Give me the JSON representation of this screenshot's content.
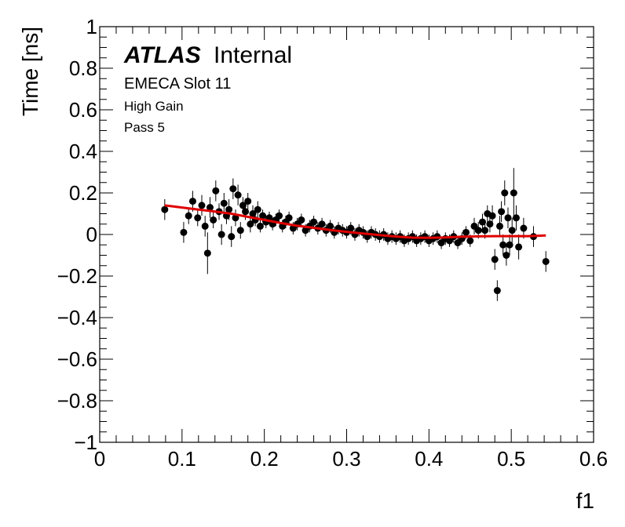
{
  "chart_data": {
    "type": "scatter",
    "xlabel": "f1",
    "ylabel": "Time [ns]",
    "xlim": [
      0,
      0.6
    ],
    "ylim": [
      -1,
      1
    ],
    "x_ticks": [
      "0",
      "0.1",
      "0.2",
      "0.3",
      "0.4",
      "0.5",
      "0.6"
    ],
    "y_ticks": [
      "−1",
      "−0.8",
      "−0.6",
      "−0.4",
      "−0.2",
      "0",
      "0.2",
      "0.4",
      "0.6",
      "0.8",
      "1"
    ],
    "annotations": {
      "brand": "ATLAS",
      "status": "Internal",
      "line1": "EMECA Slot 11",
      "line2": "High Gain",
      "line3": "Pass 5"
    },
    "colors": {
      "points": "#000000",
      "fit": "#e00000"
    },
    "points": [
      {
        "x": 0.079,
        "y": 0.12,
        "e": 0.05
      },
      {
        "x": 0.102,
        "y": 0.01,
        "e": 0.05
      },
      {
        "x": 0.108,
        "y": 0.09,
        "e": 0.04
      },
      {
        "x": 0.113,
        "y": 0.16,
        "e": 0.05
      },
      {
        "x": 0.119,
        "y": 0.08,
        "e": 0.04
      },
      {
        "x": 0.124,
        "y": 0.14,
        "e": 0.05
      },
      {
        "x": 0.128,
        "y": 0.04,
        "e": 0.05
      },
      {
        "x": 0.131,
        "y": -0.09,
        "e": 0.1
      },
      {
        "x": 0.134,
        "y": 0.13,
        "e": 0.05
      },
      {
        "x": 0.138,
        "y": 0.07,
        "e": 0.04
      },
      {
        "x": 0.141,
        "y": 0.21,
        "e": 0.05
      },
      {
        "x": 0.145,
        "y": 0.11,
        "e": 0.04
      },
      {
        "x": 0.148,
        "y": 0.0,
        "e": 0.05
      },
      {
        "x": 0.151,
        "y": 0.15,
        "e": 0.05
      },
      {
        "x": 0.154,
        "y": 0.09,
        "e": 0.04
      },
      {
        "x": 0.157,
        "y": 0.12,
        "e": 0.05
      },
      {
        "x": 0.16,
        "y": -0.01,
        "e": 0.05
      },
      {
        "x": 0.162,
        "y": 0.22,
        "e": 0.05
      },
      {
        "x": 0.165,
        "y": 0.08,
        "e": 0.04
      },
      {
        "x": 0.168,
        "y": 0.19,
        "e": 0.05
      },
      {
        "x": 0.171,
        "y": 0.02,
        "e": 0.04
      },
      {
        "x": 0.174,
        "y": 0.14,
        "e": 0.04
      },
      {
        "x": 0.177,
        "y": 0.11,
        "e": 0.04
      },
      {
        "x": 0.18,
        "y": 0.16,
        "e": 0.04
      },
      {
        "x": 0.183,
        "y": 0.05,
        "e": 0.04
      },
      {
        "x": 0.186,
        "y": 0.1,
        "e": 0.04
      },
      {
        "x": 0.189,
        "y": 0.07,
        "e": 0.03
      },
      {
        "x": 0.192,
        "y": 0.12,
        "e": 0.04
      },
      {
        "x": 0.195,
        "y": 0.04,
        "e": 0.03
      },
      {
        "x": 0.198,
        "y": 0.09,
        "e": 0.03
      },
      {
        "x": 0.202,
        "y": 0.06,
        "e": 0.03
      },
      {
        "x": 0.206,
        "y": 0.08,
        "e": 0.03
      },
      {
        "x": 0.21,
        "y": 0.05,
        "e": 0.03
      },
      {
        "x": 0.214,
        "y": 0.07,
        "e": 0.03
      },
      {
        "x": 0.218,
        "y": 0.09,
        "e": 0.03
      },
      {
        "x": 0.222,
        "y": 0.04,
        "e": 0.03
      },
      {
        "x": 0.226,
        "y": 0.06,
        "e": 0.03
      },
      {
        "x": 0.23,
        "y": 0.08,
        "e": 0.03
      },
      {
        "x": 0.235,
        "y": 0.03,
        "e": 0.03
      },
      {
        "x": 0.24,
        "y": 0.05,
        "e": 0.03
      },
      {
        "x": 0.245,
        "y": 0.07,
        "e": 0.03
      },
      {
        "x": 0.25,
        "y": 0.02,
        "e": 0.03
      },
      {
        "x": 0.255,
        "y": 0.04,
        "e": 0.03
      },
      {
        "x": 0.26,
        "y": 0.06,
        "e": 0.03
      },
      {
        "x": 0.265,
        "y": 0.03,
        "e": 0.03
      },
      {
        "x": 0.27,
        "y": 0.05,
        "e": 0.03
      },
      {
        "x": 0.275,
        "y": 0.02,
        "e": 0.03
      },
      {
        "x": 0.28,
        "y": 0.04,
        "e": 0.03
      },
      {
        "x": 0.285,
        "y": 0.01,
        "e": 0.03
      },
      {
        "x": 0.29,
        "y": 0.03,
        "e": 0.03
      },
      {
        "x": 0.295,
        "y": 0.02,
        "e": 0.03
      },
      {
        "x": 0.3,
        "y": 0.01,
        "e": 0.03
      },
      {
        "x": 0.305,
        "y": 0.03,
        "e": 0.03
      },
      {
        "x": 0.31,
        "y": 0.0,
        "e": 0.03
      },
      {
        "x": 0.315,
        "y": 0.02,
        "e": 0.03
      },
      {
        "x": 0.32,
        "y": 0.01,
        "e": 0.03
      },
      {
        "x": 0.325,
        "y": -0.01,
        "e": 0.03
      },
      {
        "x": 0.33,
        "y": 0.01,
        "e": 0.03
      },
      {
        "x": 0.335,
        "y": 0.0,
        "e": 0.03
      },
      {
        "x": 0.34,
        "y": -0.01,
        "e": 0.03
      },
      {
        "x": 0.345,
        "y": 0.0,
        "e": 0.03
      },
      {
        "x": 0.35,
        "y": -0.02,
        "e": 0.03
      },
      {
        "x": 0.355,
        "y": -0.01,
        "e": 0.03
      },
      {
        "x": 0.36,
        "y": -0.02,
        "e": 0.03
      },
      {
        "x": 0.365,
        "y": -0.01,
        "e": 0.03
      },
      {
        "x": 0.37,
        "y": -0.03,
        "e": 0.03
      },
      {
        "x": 0.375,
        "y": -0.02,
        "e": 0.03
      },
      {
        "x": 0.38,
        "y": -0.01,
        "e": 0.03
      },
      {
        "x": 0.385,
        "y": -0.03,
        "e": 0.03
      },
      {
        "x": 0.39,
        "y": -0.02,
        "e": 0.03
      },
      {
        "x": 0.395,
        "y": -0.01,
        "e": 0.03
      },
      {
        "x": 0.4,
        "y": -0.03,
        "e": 0.03
      },
      {
        "x": 0.405,
        "y": -0.02,
        "e": 0.03
      },
      {
        "x": 0.41,
        "y": -0.01,
        "e": 0.03
      },
      {
        "x": 0.415,
        "y": -0.04,
        "e": 0.03
      },
      {
        "x": 0.42,
        "y": -0.02,
        "e": 0.03
      },
      {
        "x": 0.425,
        "y": -0.03,
        "e": 0.03
      },
      {
        "x": 0.43,
        "y": -0.01,
        "e": 0.03
      },
      {
        "x": 0.435,
        "y": -0.04,
        "e": 0.03
      },
      {
        "x": 0.44,
        "y": -0.02,
        "e": 0.03
      },
      {
        "x": 0.445,
        "y": 0.01,
        "e": 0.03
      },
      {
        "x": 0.45,
        "y": -0.03,
        "e": 0.03
      },
      {
        "x": 0.455,
        "y": 0.04,
        "e": 0.04
      },
      {
        "x": 0.46,
        "y": 0.02,
        "e": 0.04
      },
      {
        "x": 0.465,
        "y": 0.06,
        "e": 0.04
      },
      {
        "x": 0.468,
        "y": 0.02,
        "e": 0.04
      },
      {
        "x": 0.471,
        "y": 0.1,
        "e": 0.04
      },
      {
        "x": 0.474,
        "y": 0.05,
        "e": 0.04
      },
      {
        "x": 0.477,
        "y": 0.09,
        "e": 0.05
      },
      {
        "x": 0.48,
        "y": -0.12,
        "e": 0.05
      },
      {
        "x": 0.483,
        "y": -0.27,
        "e": 0.05
      },
      {
        "x": 0.486,
        "y": 0.04,
        "e": 0.05
      },
      {
        "x": 0.488,
        "y": 0.11,
        "e": 0.05
      },
      {
        "x": 0.49,
        "y": -0.05,
        "e": 0.05
      },
      {
        "x": 0.492,
        "y": 0.2,
        "e": 0.06
      },
      {
        "x": 0.494,
        "y": -0.1,
        "e": 0.05
      },
      {
        "x": 0.496,
        "y": 0.08,
        "e": 0.05
      },
      {
        "x": 0.498,
        "y": -0.05,
        "e": 0.05
      },
      {
        "x": 0.501,
        "y": 0.02,
        "e": 0.06
      },
      {
        "x": 0.503,
        "y": 0.2,
        "e": 0.12
      },
      {
        "x": 0.506,
        "y": 0.08,
        "e": 0.06
      },
      {
        "x": 0.509,
        "y": -0.06,
        "e": 0.06
      },
      {
        "x": 0.515,
        "y": 0.03,
        "e": 0.05
      },
      {
        "x": 0.527,
        "y": -0.01,
        "e": 0.05
      },
      {
        "x": 0.542,
        "y": -0.13,
        "e": 0.05
      }
    ],
    "fit": {
      "x": [
        0.079,
        0.1,
        0.12,
        0.14,
        0.16,
        0.18,
        0.2,
        0.22,
        0.24,
        0.26,
        0.28,
        0.3,
        0.32,
        0.34,
        0.36,
        0.38,
        0.4,
        0.42,
        0.44,
        0.46,
        0.48,
        0.5,
        0.52,
        0.542
      ],
      "y": [
        0.14,
        0.13,
        0.12,
        0.11,
        0.1,
        0.085,
        0.07,
        0.055,
        0.042,
        0.032,
        0.022,
        0.013,
        0.005,
        -0.003,
        -0.01,
        -0.015,
        -0.016,
        -0.014,
        -0.011,
        -0.009,
        -0.008,
        -0.008,
        -0.008,
        -0.005
      ]
    }
  }
}
